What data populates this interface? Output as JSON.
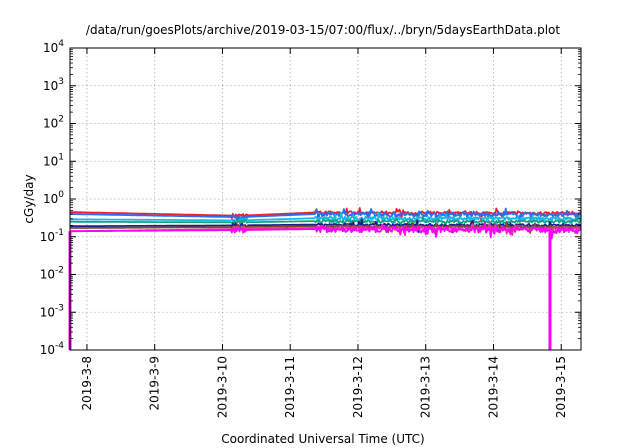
{
  "chart_data": {
    "type": "line",
    "title": "/data/run/goesPlots/archive/2019-03-15/07:00/flux/../bryn/5daysEarthData.plot",
    "xlabel": "Coordinated Universal Time (UTC)",
    "ylabel": "cGy/day",
    "yscale": "log",
    "ylim": [
      0.0001,
      10000
    ],
    "xlim": [
      "2019-03-07T18:00",
      "2019-03-15T07:00"
    ],
    "grid": true,
    "x_ticks": [
      "2019-3-8",
      "2019-3-9",
      "2019-3-10",
      "2019-3-11",
      "2019-3-12",
      "2019-3-13",
      "2019-3-14",
      "2019-3-15"
    ],
    "y_ticks": [
      {
        "base": "10",
        "exp": "-4",
        "value": 0.0001
      },
      {
        "base": "10",
        "exp": "-3",
        "value": 0.001
      },
      {
        "base": "10",
        "exp": "-2",
        "value": 0.01
      },
      {
        "base": "10",
        "exp": "-1",
        "value": 0.1
      },
      {
        "base": "10",
        "exp": "0",
        "value": 1
      },
      {
        "base": "10",
        "exp": "1",
        "value": 10
      },
      {
        "base": "10",
        "exp": "2",
        "value": 100
      },
      {
        "base": "10",
        "exp": "3",
        "value": 1000
      },
      {
        "base": "10",
        "exp": "4",
        "value": 10000
      }
    ],
    "series": [
      {
        "color": "#e8202a",
        "noise": 0.09,
        "points": [
          [
            "2019-03-07T18:00",
            0.45
          ],
          [
            "2019-03-10T06:00",
            0.36
          ],
          [
            "2019-03-11T09:00",
            0.44
          ],
          [
            "2019-03-15T07:00",
            0.42
          ]
        ]
      },
      {
        "color": "#2a6df4",
        "noise": 0.12,
        "points": [
          [
            "2019-03-07T18:00",
            0.4
          ],
          [
            "2019-03-10T06:00",
            0.33
          ],
          [
            "2019-03-11T09:00",
            0.4
          ],
          [
            "2019-03-15T07:00",
            0.38
          ]
        ]
      },
      {
        "color": "#17b8e6",
        "noise": 0.1,
        "points": [
          [
            "2019-03-07T18:00",
            0.29
          ],
          [
            "2019-03-10T06:00",
            0.27
          ],
          [
            "2019-03-11T09:00",
            0.31
          ],
          [
            "2019-03-15T07:00",
            0.3
          ]
        ]
      },
      {
        "color": "#14a37f",
        "noise": 0.08,
        "points": [
          [
            "2019-03-07T18:00",
            0.25
          ],
          [
            "2019-03-10T06:00",
            0.24
          ],
          [
            "2019-03-11T09:00",
            0.26
          ],
          [
            "2019-03-15T07:00",
            0.25
          ]
        ]
      },
      {
        "color": "#1d1d8a",
        "noise": 0.07,
        "points": [
          [
            "2019-03-07T18:00",
            0.19
          ],
          [
            "2019-03-10T06:00",
            0.2
          ],
          [
            "2019-03-11T09:00",
            0.21
          ],
          [
            "2019-03-15T07:00",
            0.2
          ]
        ]
      },
      {
        "color": "#7a4d2e",
        "noise": 0.06,
        "points": [
          [
            "2019-03-07T18:00",
            0.17
          ],
          [
            "2019-03-10T06:00",
            0.18
          ],
          [
            "2019-03-11T09:00",
            0.19
          ],
          [
            "2019-03-15T07:00",
            0.18
          ]
        ]
      },
      {
        "color": "#e23aa0",
        "noise": 0.1,
        "points": [
          [
            "2019-03-07T18:00",
            0.14
          ],
          [
            "2019-03-10T06:00",
            0.16
          ],
          [
            "2019-03-11T09:00",
            0.17
          ],
          [
            "2019-03-15T07:00",
            0.16
          ]
        ]
      },
      {
        "color": "#ff00ff",
        "noise": 0.18,
        "points": [
          [
            "2019-03-07T18:00",
            0.14
          ],
          [
            "2019-03-10T06:00",
            0.15
          ],
          [
            "2019-03-11T09:00",
            0.16
          ],
          [
            "2019-03-15T07:00",
            0.15
          ]
        ],
        "dropouts": [
          [
            "2019-03-07T18:00",
            0.0001
          ],
          [
            "2019-03-14T20:00",
            0.0001
          ]
        ]
      }
    ]
  }
}
